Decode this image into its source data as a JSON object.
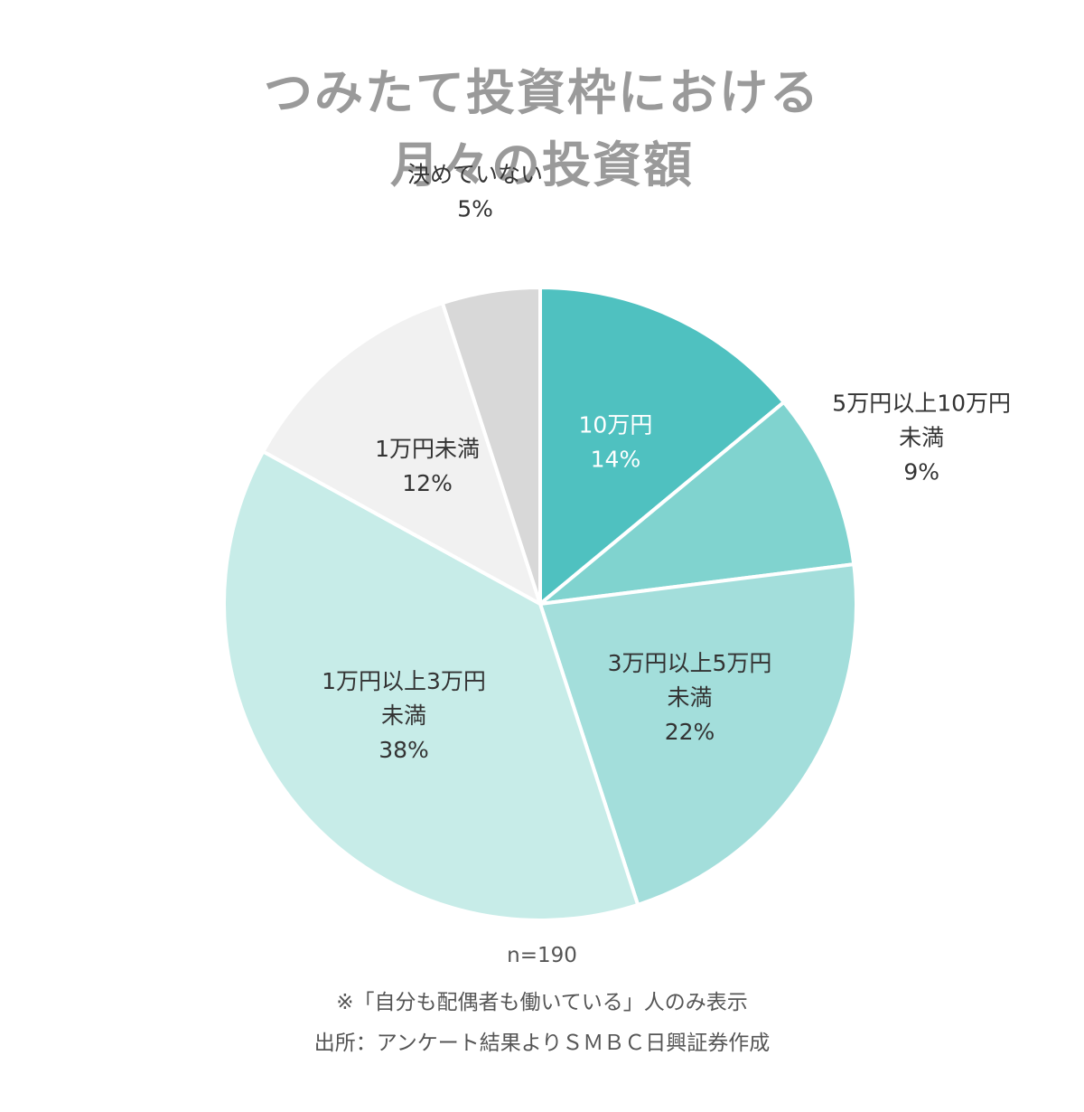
{
  "chart_data": {
    "type": "pie",
    "title": [
      "つみたて投資枠における",
      "月々の投資額"
    ],
    "slices": [
      {
        "label": [
          "10万円"
        ],
        "value": 14,
        "value_label": "14%",
        "color": "#4fc1c0",
        "text_color": "#ffffff",
        "label_outside": false
      },
      {
        "label": [
          "5万円以上10万円",
          "未満"
        ],
        "value": 9,
        "value_label": "9%",
        "color": "#80d3cf",
        "text_color": "#333333",
        "label_outside": true
      },
      {
        "label": [
          "3万円以上5万円",
          "未満"
        ],
        "value": 22,
        "value_label": "22%",
        "color": "#a3dedb",
        "text_color": "#333333",
        "label_outside": false
      },
      {
        "label": [
          "1万円以上3万円",
          "未満"
        ],
        "value": 38,
        "value_label": "38%",
        "color": "#c7ece8",
        "text_color": "#333333",
        "label_outside": false
      },
      {
        "label": [
          "1万円未満"
        ],
        "value": 12,
        "value_label": "12%",
        "color": "#f1f1f1",
        "text_color": "#333333",
        "label_outside": false
      },
      {
        "label": [
          "決めていない"
        ],
        "value": 5,
        "value_label": "5%",
        "color": "#d8d8d8",
        "text_color": "#333333",
        "label_outside": true
      }
    ],
    "start": "top",
    "direction": "clockwise",
    "legend": "none"
  },
  "notes": {
    "n": "n=190",
    "filter": "※「自分も配偶者も働いている」人のみ表示",
    "source": "出所：アンケート結果よりＳＭＢＣ日興証券作成"
  }
}
